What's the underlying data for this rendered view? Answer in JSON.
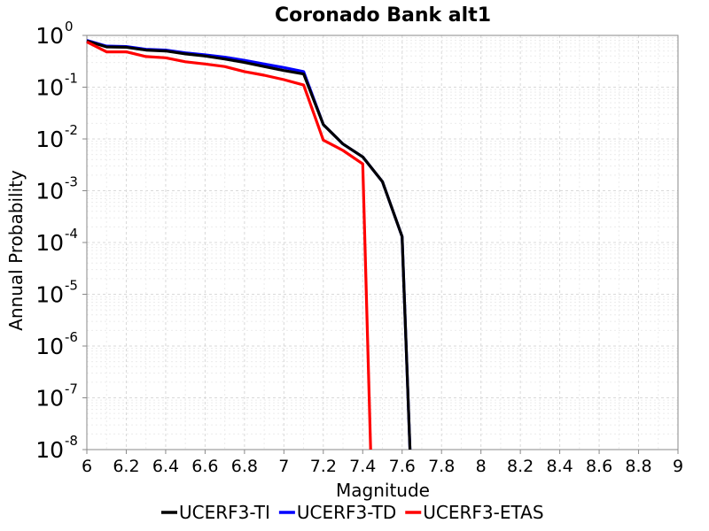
{
  "chart_data": {
    "type": "line",
    "title": "Coronado Bank alt1",
    "xlabel": "Magnitude",
    "ylabel": "Annual Probability",
    "xlim": [
      6,
      9
    ],
    "ylim": [
      1e-08,
      1
    ],
    "yscale": "log",
    "grid": true,
    "legend_position": "bottom",
    "x_ticks": [
      "6",
      "6.2",
      "6.4",
      "6.6",
      "6.8",
      "7",
      "7.2",
      "7.4",
      "7.6",
      "7.8",
      "8",
      "8.2",
      "8.4",
      "8.6",
      "8.8",
      "9"
    ],
    "y_ticks": [
      {
        "base": "10",
        "exp": "0"
      },
      {
        "base": "10",
        "exp": "-1"
      },
      {
        "base": "10",
        "exp": "-2"
      },
      {
        "base": "10",
        "exp": "-3"
      },
      {
        "base": "10",
        "exp": "-4"
      },
      {
        "base": "10",
        "exp": "-5"
      },
      {
        "base": "10",
        "exp": "-6"
      },
      {
        "base": "10",
        "exp": "-7"
      },
      {
        "base": "10",
        "exp": "-8"
      }
    ],
    "series": [
      {
        "name": "UCERF3-TI",
        "color": "#000000",
        "x": [
          6.0,
          6.1,
          6.2,
          6.3,
          6.4,
          6.5,
          6.6,
          6.7,
          6.8,
          6.9,
          7.0,
          7.1,
          7.2,
          7.3,
          7.4,
          7.5,
          7.6,
          7.64
        ],
        "y": [
          0.78,
          0.6,
          0.59,
          0.52,
          0.5,
          0.44,
          0.4,
          0.35,
          0.3,
          0.25,
          0.21,
          0.18,
          0.019,
          0.008,
          0.0045,
          0.0015,
          0.00013,
          1e-08
        ]
      },
      {
        "name": "UCERF3-TD",
        "color": "#0000ff",
        "x": [
          6.0,
          6.1,
          6.2,
          6.3,
          6.4,
          6.5,
          6.6,
          6.7,
          6.8,
          6.9,
          7.0,
          7.1,
          7.2,
          7.3,
          7.4,
          7.5,
          7.6,
          7.64
        ],
        "y": [
          0.8,
          0.62,
          0.61,
          0.54,
          0.52,
          0.46,
          0.42,
          0.38,
          0.33,
          0.28,
          0.24,
          0.2,
          0.019,
          0.008,
          0.0045,
          0.0015,
          0.00013,
          1e-08
        ]
      },
      {
        "name": "UCERF3-ETAS",
        "color": "#ff0000",
        "x": [
          6.0,
          6.1,
          6.2,
          6.3,
          6.4,
          6.5,
          6.6,
          6.7,
          6.8,
          6.9,
          7.0,
          7.1,
          7.2,
          7.3,
          7.4,
          7.44
        ],
        "y": [
          0.75,
          0.48,
          0.48,
          0.39,
          0.37,
          0.31,
          0.28,
          0.25,
          0.2,
          0.17,
          0.14,
          0.11,
          0.0095,
          0.006,
          0.0033,
          1e-08
        ]
      }
    ]
  }
}
